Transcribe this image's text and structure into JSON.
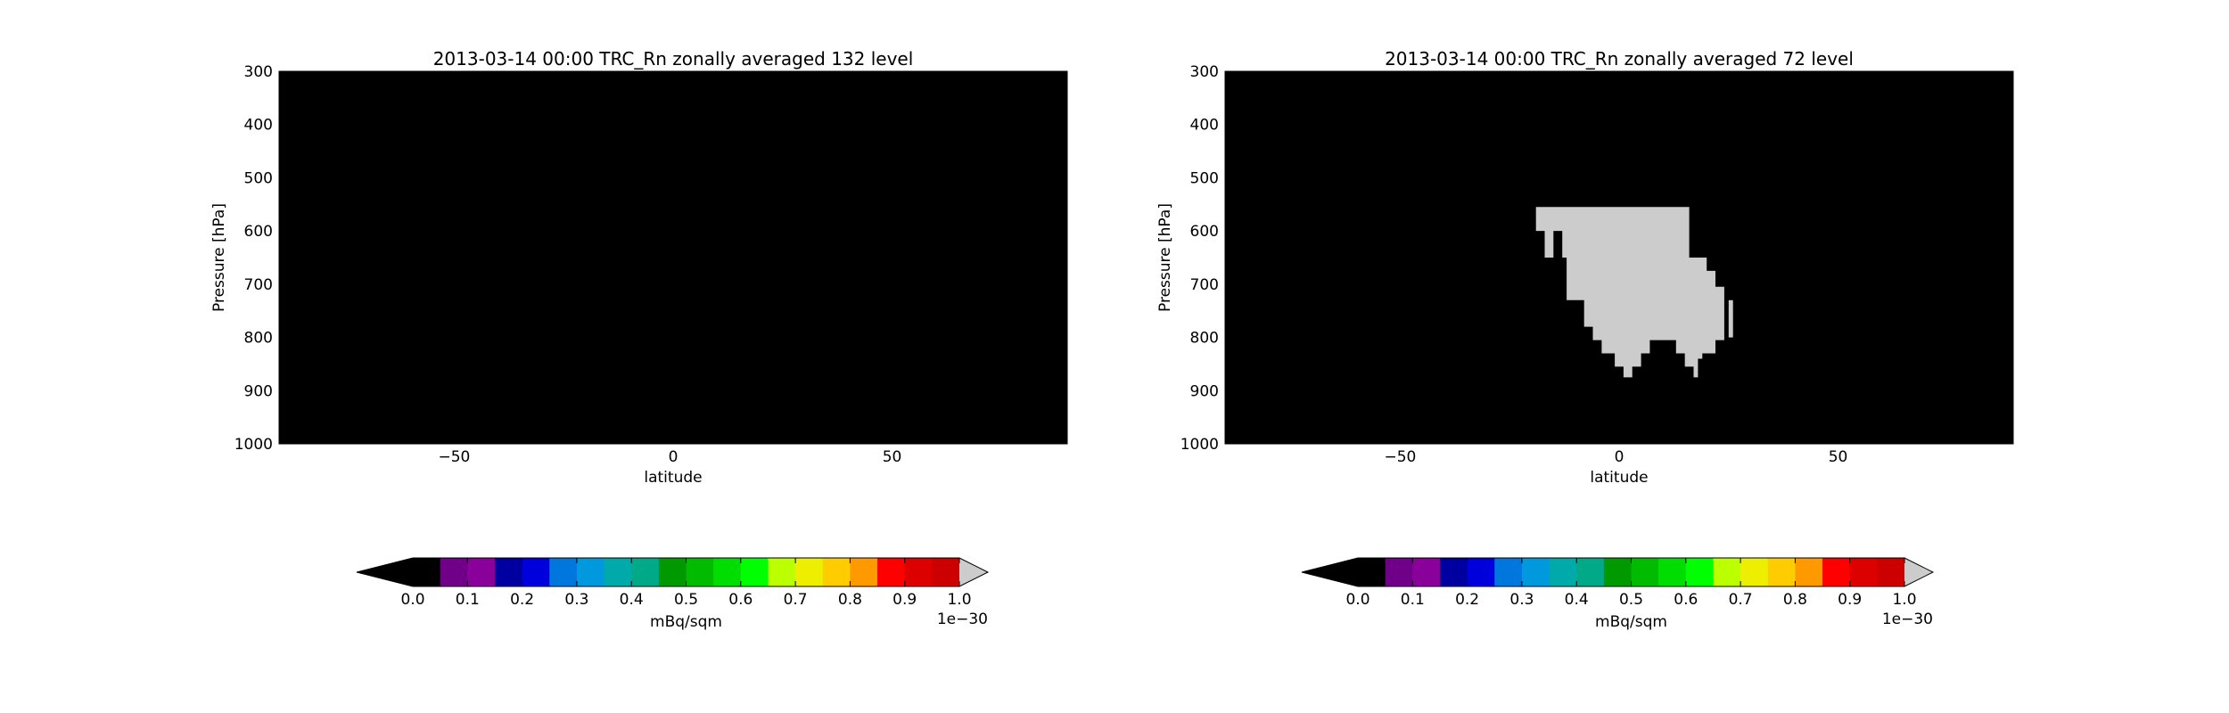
{
  "chart_data": [
    {
      "type": "heatmap",
      "title": "2013-03-14 00:00 TRC_Rn zonally averaged 132 level",
      "xlabel": "latitude",
      "ylabel": "Pressure [hPa]",
      "xlim": [
        -90,
        90
      ],
      "ylim": [
        1000,
        300
      ],
      "y_inverted": true,
      "xticks": [
        -50,
        0,
        50
      ],
      "xtick_labels": [
        "−50",
        "0",
        "50"
      ],
      "yticks": [
        300,
        400,
        500,
        600,
        700,
        800,
        900,
        1000
      ],
      "ytick_labels": [
        "300",
        "400",
        "500",
        "600",
        "700",
        "800",
        "900",
        "1000"
      ],
      "background_color": "#000000",
      "regions": []
    },
    {
      "type": "heatmap",
      "title": "2013-03-14 00:00 TRC_Rn zonally averaged 72 level",
      "xlabel": "latitude",
      "ylabel": "Pressure [hPa]",
      "xlim": [
        -90,
        90
      ],
      "ylim": [
        1000,
        300
      ],
      "y_inverted": true,
      "xticks": [
        -50,
        0,
        50
      ],
      "xtick_labels": [
        "−50",
        "0",
        "50"
      ],
      "yticks": [
        300,
        400,
        500,
        600,
        700,
        800,
        900,
        1000
      ],
      "ytick_labels": [
        "300",
        "400",
        "500",
        "600",
        "700",
        "800",
        "900",
        "1000"
      ],
      "background_color": "#000000",
      "regions": [
        {
          "value_class": "over_range",
          "color": "#cccccc",
          "polygon": [
            [
              -19,
              555
            ],
            [
              16,
              555
            ],
            [
              16,
              650
            ],
            [
              20,
              650
            ],
            [
              20,
              675
            ],
            [
              22,
              675
            ],
            [
              22,
              705
            ],
            [
              24,
              705
            ],
            [
              24,
              805
            ],
            [
              22,
              805
            ],
            [
              22,
              830
            ],
            [
              19,
              830
            ],
            [
              19,
              840
            ],
            [
              18,
              840
            ],
            [
              18,
              875
            ],
            [
              17,
              875
            ],
            [
              17,
              855
            ],
            [
              15,
              855
            ],
            [
              15,
              830
            ],
            [
              13,
              830
            ],
            [
              13,
              805
            ],
            [
              7,
              805
            ],
            [
              7,
              830
            ],
            [
              5,
              830
            ],
            [
              5,
              855
            ],
            [
              3,
              855
            ],
            [
              3,
              875
            ],
            [
              1,
              875
            ],
            [
              1,
              855
            ],
            [
              -1,
              855
            ],
            [
              -1,
              830
            ],
            [
              -4,
              830
            ],
            [
              -4,
              805
            ],
            [
              -6,
              805
            ],
            [
              -6,
              780
            ],
            [
              -8,
              780
            ],
            [
              -8,
              730
            ],
            [
              -12,
              730
            ],
            [
              -12,
              650
            ],
            [
              -17,
              650
            ],
            [
              -17,
              600
            ],
            [
              -19,
              600
            ]
          ]
        },
        {
          "value_class": "over_range",
          "color": "#cccccc",
          "polygon": [
            [
              25,
              730
            ],
            [
              26,
              730
            ],
            [
              26,
              800
            ],
            [
              25,
              800
            ]
          ]
        }
      ],
      "holes": [
        {
          "color": "#000000",
          "polygon": [
            [
              -15,
              600
            ],
            [
              -13,
              600
            ],
            [
              -13,
              650
            ],
            [
              -15,
              650
            ]
          ]
        }
      ]
    }
  ],
  "colorbars": [
    {
      "label": "mBq/sqm",
      "offset_text": "1e−30",
      "extend": "both",
      "under_color": "#000000",
      "over_color": "#cccccc",
      "tick_labels": [
        "0.0",
        "0.1",
        "0.2",
        "0.3",
        "0.4",
        "0.5",
        "0.6",
        "0.7",
        "0.8",
        "0.9",
        "1.0"
      ],
      "colors": [
        "#000000",
        "#700088",
        "#8a009a",
        "#0000a0",
        "#0000dd",
        "#0077dd",
        "#0099dd",
        "#00aaaa",
        "#00aa88",
        "#009900",
        "#00bb00",
        "#00dd00",
        "#00ff00",
        "#bbff00",
        "#eeee00",
        "#ffcc00",
        "#ff9900",
        "#ff0000",
        "#dd0000",
        "#cc0000"
      ]
    },
    {
      "label": "mBq/sqm",
      "offset_text": "1e−30",
      "extend": "both",
      "under_color": "#000000",
      "over_color": "#cccccc",
      "tick_labels": [
        "0.0",
        "0.1",
        "0.2",
        "0.3",
        "0.4",
        "0.5",
        "0.6",
        "0.7",
        "0.8",
        "0.9",
        "1.0"
      ],
      "colors": [
        "#000000",
        "#700088",
        "#8a009a",
        "#0000a0",
        "#0000dd",
        "#0077dd",
        "#0099dd",
        "#00aaaa",
        "#00aa88",
        "#009900",
        "#00bb00",
        "#00dd00",
        "#00ff00",
        "#bbff00",
        "#eeee00",
        "#ffcc00",
        "#ff9900",
        "#ff0000",
        "#dd0000",
        "#cc0000"
      ]
    }
  ]
}
